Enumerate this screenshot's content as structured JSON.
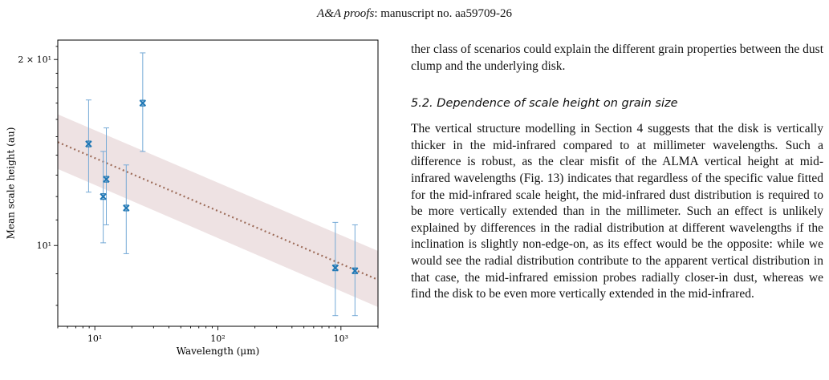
{
  "header": {
    "journal": "A&A proofs",
    "rest": ": manuscript no. aa59709-26"
  },
  "chart_data": {
    "type": "scatter",
    "xlabel": "Wavelength (μm)",
    "ylabel": "Mean scale height (au)",
    "xscale": "log",
    "yscale": "log",
    "xlim": [
      5,
      2000
    ],
    "ylim": [
      7.4,
      21.5
    ],
    "xticks": [
      10,
      100,
      1000
    ],
    "xtick_labels": [
      "10¹",
      "10²",
      "10³"
    ],
    "yticks": [
      10,
      20
    ],
    "ytick_labels": [
      "10¹",
      "2 × 10¹"
    ],
    "series": [
      {
        "points": [
          {
            "x": 8.9,
            "y": 14.6,
            "err_low": 2.4,
            "err_high": 2.6
          },
          {
            "x": 11.7,
            "y": 12.0,
            "err_low": 1.9,
            "err_high": 2.2
          },
          {
            "x": 12.4,
            "y": 12.8,
            "err_low": 2.0,
            "err_high": 2.7
          },
          {
            "x": 18.0,
            "y": 11.5,
            "err_low": 1.8,
            "err_high": 2.0
          },
          {
            "x": 24.5,
            "y": 17.0,
            "err_low": 2.8,
            "err_high": 3.5
          },
          {
            "x": 900,
            "y": 9.2,
            "err_low": 1.5,
            "err_high": 1.7
          },
          {
            "x": 1300,
            "y": 9.1,
            "err_low": 1.4,
            "err_high": 1.7
          }
        ]
      }
    ],
    "fit": {
      "x": [
        5,
        2000
      ],
      "y": [
        14.7,
        8.8
      ]
    },
    "band": {
      "x": [
        5,
        2000
      ],
      "upper": [
        16.3,
        9.8
      ],
      "lower": [
        13.3,
        7.95
      ]
    },
    "colors": {
      "points": "#1f77b4",
      "errorbars": "#74a9d6",
      "fit": "#9c6b58",
      "band": "#e8d8d9"
    },
    "grid": false,
    "legend": "none"
  },
  "text": {
    "para1": "ther class of scenarios could explain the different grain properties between the dust clump and the underlying disk.",
    "section_title": "5.2. Dependence of scale height on grain size",
    "para2": "The vertical structure modelling in Section 4 suggests that the disk is vertically thicker in the mid-infrared compared to at millimeter wavelengths. Such a difference is robust, as the clear misfit of the ALMA vertical height at mid-infrared wavelengths (Fig. 13) indicates that regardless of the specific value fitted for the mid-infrared scale height, the mid-infrared dust distribution is required to be more vertically extended than in the millimeter. Such an effect is unlikely explained by differences in the radial distribution at different wavelengths if the inclination is slightly non-edge-on, as its effect would be the opposite: while we would see the radial distribution contribute to the apparent vertical distribution in that case, the mid-infrared emission probes radially closer-in dust, whereas we find the disk to be even more vertically extended in the mid-infrared."
  }
}
